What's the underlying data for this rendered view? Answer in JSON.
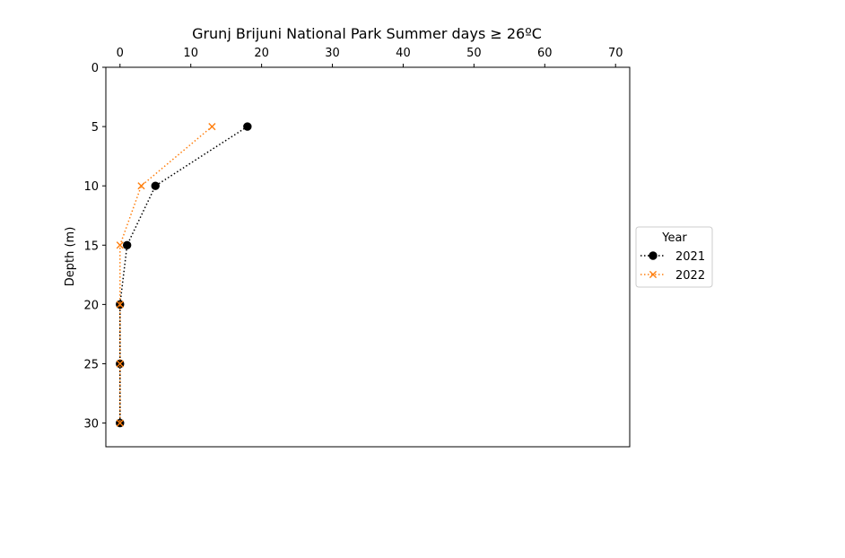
{
  "chart_data": {
    "type": "line",
    "title": "Grunj Brijuni National Park Summer days ≥ 26ºC",
    "xlabel": "",
    "ylabel": "Depth (m)",
    "xlim": [
      -2,
      72
    ],
    "ylim": [
      32,
      0
    ],
    "x_axis_position": "top",
    "y_inverted": true,
    "x_ticks": [
      0,
      10,
      20,
      30,
      40,
      50,
      60,
      70
    ],
    "y_ticks": [
      0,
      5,
      10,
      15,
      20,
      25,
      30
    ],
    "grid": false,
    "legend": {
      "title": "Year",
      "placement": "center-right outside"
    },
    "series": [
      {
        "name": "2021",
        "color": "#000000",
        "marker": "circle",
        "linestyle": "dotted",
        "points": [
          {
            "depth": 5,
            "days": 18
          },
          {
            "depth": 10,
            "days": 5
          },
          {
            "depth": 15,
            "days": 1
          },
          {
            "depth": 20,
            "days": 0
          },
          {
            "depth": 25,
            "days": 0
          },
          {
            "depth": 30,
            "days": 0
          }
        ]
      },
      {
        "name": "2022",
        "color": "#ff7f0e",
        "marker": "x",
        "linestyle": "dotted",
        "points": [
          {
            "depth": 5,
            "days": 13
          },
          {
            "depth": 10,
            "days": 3
          },
          {
            "depth": 15,
            "days": 0
          },
          {
            "depth": 20,
            "days": 0
          },
          {
            "depth": 25,
            "days": 0
          },
          {
            "depth": 30,
            "days": 0
          }
        ]
      }
    ]
  }
}
